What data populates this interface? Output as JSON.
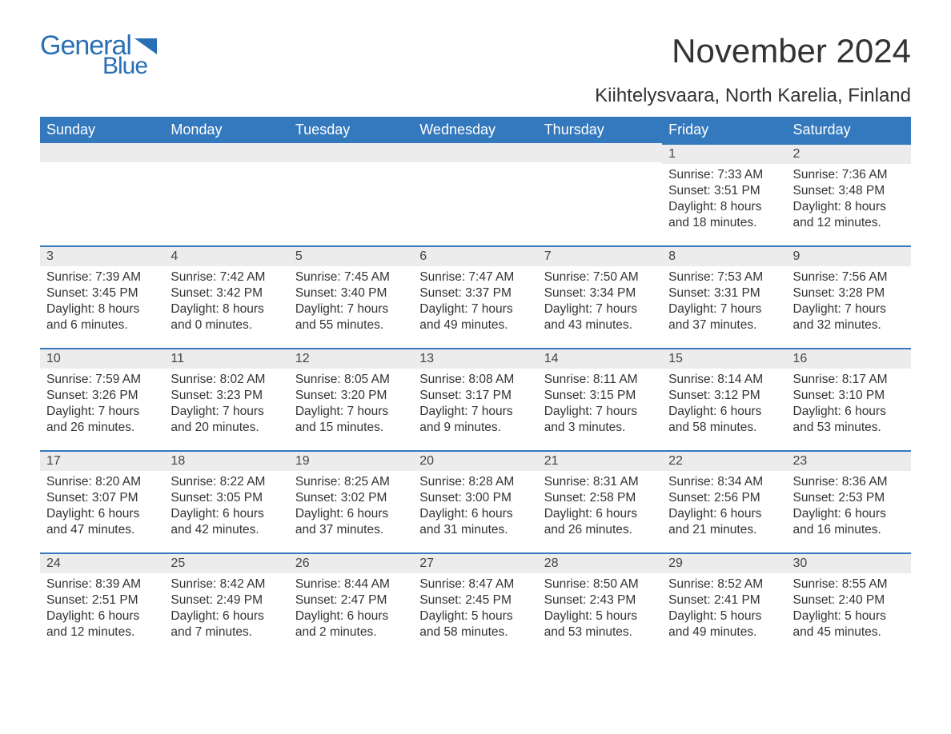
{
  "brand": {
    "word1": "General",
    "word2": "Blue",
    "color": "#2a6fb5"
  },
  "title": "November 2024",
  "location": "Kiihtelysvaara, North Karelia, Finland",
  "colors": {
    "header_bg": "#3478bd",
    "header_text": "#ffffff",
    "daybar_bg": "#ececec",
    "daybar_border": "#3478bd",
    "body_text": "#333333",
    "page_bg": "#ffffff"
  },
  "weekdays": [
    "Sunday",
    "Monday",
    "Tuesday",
    "Wednesday",
    "Thursday",
    "Friday",
    "Saturday"
  ],
  "weeks": [
    [
      null,
      null,
      null,
      null,
      null,
      {
        "n": "1",
        "sunrise": "Sunrise: 7:33 AM",
        "sunset": "Sunset: 3:51 PM",
        "dl1": "Daylight: 8 hours",
        "dl2": "and 18 minutes."
      },
      {
        "n": "2",
        "sunrise": "Sunrise: 7:36 AM",
        "sunset": "Sunset: 3:48 PM",
        "dl1": "Daylight: 8 hours",
        "dl2": "and 12 minutes."
      }
    ],
    [
      {
        "n": "3",
        "sunrise": "Sunrise: 7:39 AM",
        "sunset": "Sunset: 3:45 PM",
        "dl1": "Daylight: 8 hours",
        "dl2": "and 6 minutes."
      },
      {
        "n": "4",
        "sunrise": "Sunrise: 7:42 AM",
        "sunset": "Sunset: 3:42 PM",
        "dl1": "Daylight: 8 hours",
        "dl2": "and 0 minutes."
      },
      {
        "n": "5",
        "sunrise": "Sunrise: 7:45 AM",
        "sunset": "Sunset: 3:40 PM",
        "dl1": "Daylight: 7 hours",
        "dl2": "and 55 minutes."
      },
      {
        "n": "6",
        "sunrise": "Sunrise: 7:47 AM",
        "sunset": "Sunset: 3:37 PM",
        "dl1": "Daylight: 7 hours",
        "dl2": "and 49 minutes."
      },
      {
        "n": "7",
        "sunrise": "Sunrise: 7:50 AM",
        "sunset": "Sunset: 3:34 PM",
        "dl1": "Daylight: 7 hours",
        "dl2": "and 43 minutes."
      },
      {
        "n": "8",
        "sunrise": "Sunrise: 7:53 AM",
        "sunset": "Sunset: 3:31 PM",
        "dl1": "Daylight: 7 hours",
        "dl2": "and 37 minutes."
      },
      {
        "n": "9",
        "sunrise": "Sunrise: 7:56 AM",
        "sunset": "Sunset: 3:28 PM",
        "dl1": "Daylight: 7 hours",
        "dl2": "and 32 minutes."
      }
    ],
    [
      {
        "n": "10",
        "sunrise": "Sunrise: 7:59 AM",
        "sunset": "Sunset: 3:26 PM",
        "dl1": "Daylight: 7 hours",
        "dl2": "and 26 minutes."
      },
      {
        "n": "11",
        "sunrise": "Sunrise: 8:02 AM",
        "sunset": "Sunset: 3:23 PM",
        "dl1": "Daylight: 7 hours",
        "dl2": "and 20 minutes."
      },
      {
        "n": "12",
        "sunrise": "Sunrise: 8:05 AM",
        "sunset": "Sunset: 3:20 PM",
        "dl1": "Daylight: 7 hours",
        "dl2": "and 15 minutes."
      },
      {
        "n": "13",
        "sunrise": "Sunrise: 8:08 AM",
        "sunset": "Sunset: 3:17 PM",
        "dl1": "Daylight: 7 hours",
        "dl2": "and 9 minutes."
      },
      {
        "n": "14",
        "sunrise": "Sunrise: 8:11 AM",
        "sunset": "Sunset: 3:15 PM",
        "dl1": "Daylight: 7 hours",
        "dl2": "and 3 minutes."
      },
      {
        "n": "15",
        "sunrise": "Sunrise: 8:14 AM",
        "sunset": "Sunset: 3:12 PM",
        "dl1": "Daylight: 6 hours",
        "dl2": "and 58 minutes."
      },
      {
        "n": "16",
        "sunrise": "Sunrise: 8:17 AM",
        "sunset": "Sunset: 3:10 PM",
        "dl1": "Daylight: 6 hours",
        "dl2": "and 53 minutes."
      }
    ],
    [
      {
        "n": "17",
        "sunrise": "Sunrise: 8:20 AM",
        "sunset": "Sunset: 3:07 PM",
        "dl1": "Daylight: 6 hours",
        "dl2": "and 47 minutes."
      },
      {
        "n": "18",
        "sunrise": "Sunrise: 8:22 AM",
        "sunset": "Sunset: 3:05 PM",
        "dl1": "Daylight: 6 hours",
        "dl2": "and 42 minutes."
      },
      {
        "n": "19",
        "sunrise": "Sunrise: 8:25 AM",
        "sunset": "Sunset: 3:02 PM",
        "dl1": "Daylight: 6 hours",
        "dl2": "and 37 minutes."
      },
      {
        "n": "20",
        "sunrise": "Sunrise: 8:28 AM",
        "sunset": "Sunset: 3:00 PM",
        "dl1": "Daylight: 6 hours",
        "dl2": "and 31 minutes."
      },
      {
        "n": "21",
        "sunrise": "Sunrise: 8:31 AM",
        "sunset": "Sunset: 2:58 PM",
        "dl1": "Daylight: 6 hours",
        "dl2": "and 26 minutes."
      },
      {
        "n": "22",
        "sunrise": "Sunrise: 8:34 AM",
        "sunset": "Sunset: 2:56 PM",
        "dl1": "Daylight: 6 hours",
        "dl2": "and 21 minutes."
      },
      {
        "n": "23",
        "sunrise": "Sunrise: 8:36 AM",
        "sunset": "Sunset: 2:53 PM",
        "dl1": "Daylight: 6 hours",
        "dl2": "and 16 minutes."
      }
    ],
    [
      {
        "n": "24",
        "sunrise": "Sunrise: 8:39 AM",
        "sunset": "Sunset: 2:51 PM",
        "dl1": "Daylight: 6 hours",
        "dl2": "and 12 minutes."
      },
      {
        "n": "25",
        "sunrise": "Sunrise: 8:42 AM",
        "sunset": "Sunset: 2:49 PM",
        "dl1": "Daylight: 6 hours",
        "dl2": "and 7 minutes."
      },
      {
        "n": "26",
        "sunrise": "Sunrise: 8:44 AM",
        "sunset": "Sunset: 2:47 PM",
        "dl1": "Daylight: 6 hours",
        "dl2": "and 2 minutes."
      },
      {
        "n": "27",
        "sunrise": "Sunrise: 8:47 AM",
        "sunset": "Sunset: 2:45 PM",
        "dl1": "Daylight: 5 hours",
        "dl2": "and 58 minutes."
      },
      {
        "n": "28",
        "sunrise": "Sunrise: 8:50 AM",
        "sunset": "Sunset: 2:43 PM",
        "dl1": "Daylight: 5 hours",
        "dl2": "and 53 minutes."
      },
      {
        "n": "29",
        "sunrise": "Sunrise: 8:52 AM",
        "sunset": "Sunset: 2:41 PM",
        "dl1": "Daylight: 5 hours",
        "dl2": "and 49 minutes."
      },
      {
        "n": "30",
        "sunrise": "Sunrise: 8:55 AM",
        "sunset": "Sunset: 2:40 PM",
        "dl1": "Daylight: 5 hours",
        "dl2": "and 45 minutes."
      }
    ]
  ]
}
